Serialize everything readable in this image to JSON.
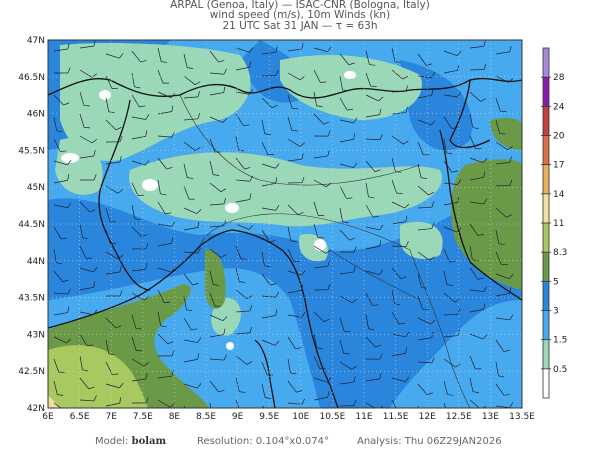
{
  "header": {
    "line1": "ARPAL (Genoa, Italy)  —  ISAC-CNR (Bologna, Italy)",
    "line2": "wind speed (m/s), 10m Winds (kn)",
    "line3": "21 UTC Sat 31 JAN  —  τ = 63h"
  },
  "map": {
    "lon_ticks": [
      "6E",
      "6.5E",
      "7E",
      "7.5E",
      "8E",
      "8.5E",
      "9E",
      "9.5E",
      "10E",
      "10.5E",
      "11E",
      "11.5E",
      "12E",
      "12.5E",
      "13E",
      "13.5E"
    ],
    "lat_ticks": [
      "47N",
      "46.5N",
      "46N",
      "45.5N",
      "45N",
      "44.5N",
      "44N",
      "43.5N",
      "43N",
      "42.5N",
      "42N"
    ],
    "watermark": "ARPAL"
  },
  "colorbar": {
    "labels": [
      "28",
      "24",
      "20",
      "17",
      "14",
      "11",
      "8.3",
      "5",
      "3",
      "1.5",
      "0.5"
    ],
    "colors": [
      "#a98ad8",
      "#8a1cb0",
      "#c2403e",
      "#d8704c",
      "#e8b058",
      "#f2e0a0",
      "#a8c860",
      "#6a9a48",
      "#2a86dc",
      "#48aaee",
      "#9ad8b8",
      "#ffffff"
    ]
  },
  "footer": {
    "model_label": "Model:",
    "model": "bolam",
    "resolution": "Resolution: 0.104°x0.074°",
    "analysis": "Analysis: Thu 06Z29JAN2026"
  }
}
